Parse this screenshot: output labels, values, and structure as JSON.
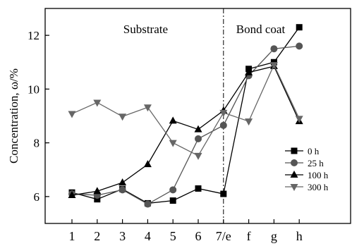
{
  "chart_data": {
    "type": "line",
    "title": "",
    "xlabel": "",
    "ylabel": "Concentration, ω/%",
    "ylim": [
      5.0,
      13.0
    ],
    "grid": false,
    "legend_position": "bottom-right",
    "categories": [
      "1",
      "2",
      "3",
      "4",
      "5",
      "6",
      "7/e",
      "f",
      "g",
      "h"
    ],
    "y_ticks": [
      6,
      8,
      10,
      12
    ],
    "regions": [
      {
        "label": "Substrate",
        "from": "1",
        "to": "7/e"
      },
      {
        "label": "Bond coat",
        "from": "7/e",
        "to": "h"
      }
    ],
    "divider_at": "7/e",
    "series": [
      {
        "name": "0 h",
        "marker": "square",
        "color": "#000000",
        "values": [
          6.15,
          5.9,
          6.28,
          5.75,
          5.85,
          6.3,
          6.1,
          10.75,
          11.0,
          12.3
        ]
      },
      {
        "name": "25 h",
        "marker": "circle",
        "color": "#555555",
        "values": [
          6.1,
          6.05,
          6.25,
          5.72,
          6.25,
          8.15,
          8.65,
          10.5,
          11.5,
          11.6
        ]
      },
      {
        "name": "100 h",
        "marker": "triangle-up",
        "color": "#000000",
        "values": [
          6.05,
          6.2,
          6.52,
          7.2,
          8.82,
          8.5,
          9.2,
          10.62,
          10.85,
          8.8
        ]
      },
      {
        "name": "300 h",
        "marker": "triangle-down",
        "color": "#666666",
        "values": [
          9.08,
          9.5,
          8.98,
          9.32,
          8.0,
          7.52,
          9.12,
          8.8,
          10.9,
          8.9
        ]
      }
    ]
  }
}
